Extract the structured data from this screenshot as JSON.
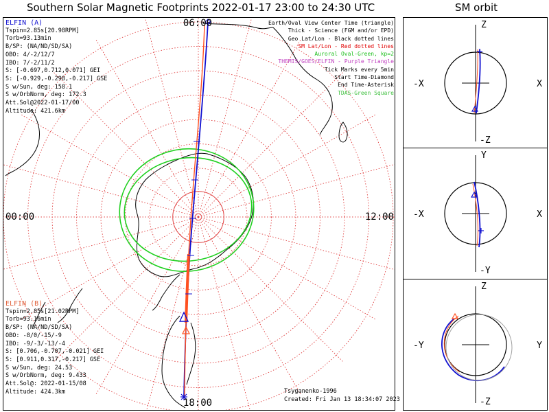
{
  "title": "Southern Solar Magnetic Footprints 2022-01-17 23:00 to 24:30 UTC",
  "orbit_panel_title": "SM orbit",
  "clock_labels": {
    "top": "06:00",
    "left": "00:00",
    "right": "12:00",
    "bottom": "18:00"
  },
  "probe_a": {
    "name": "ELFIN (A)",
    "color": "#1010d0",
    "lines": [
      "Tspin=2.85s[20.98RPM]",
      "Torb=93.13min",
      "B/SP: (NA/ND/SD/SA)",
      "OBO: 4/-2/12/7",
      "IBO: 7/-2/11/2",
      "S: [-0.697,0.712,0.071] GEI",
      "S: [-0.929,-0.298,-0.217] GSE",
      "S w/Sun, deg: 158.1",
      "S w/OrbNorm, deg: 172.3",
      "Att.Sol@2022-01-17/00",
      "Altitude: 421.6km"
    ]
  },
  "probe_b": {
    "name": "ELFIN (B)",
    "color": "#e0623c",
    "lines": [
      "Tspin=2.85s[21.02RPM]",
      "Torb=93.16min",
      "B/SP: (NA/ND/SD/SA)",
      "OBO: -8/0/-15/-9",
      "IBO: -9/-3/-13/-4",
      "S: [0.706,-0.707,-0.021] GEI",
      "S: [0.911,0.317,-0.217] GSE",
      "S w/Sun, deg: 24.53",
      "S w/OrbNorm, deg: 9.433",
      "Att.Sol@: 2022-01-15/08",
      "Altitude: 424.3km"
    ]
  },
  "legend": [
    {
      "text": "Earth/Oval View Center Time (triangle)",
      "color": "#000000"
    },
    {
      "text": "Thick - Science (FGM and/or EPD)",
      "color": "#000000"
    },
    {
      "text": "Geo Lat/Lon - Black dotted lines",
      "color": "#000000"
    },
    {
      "text": "SM Lat/Lon - Red dotted lines",
      "color": "#e00000"
    },
    {
      "text": "Auroral Oval-Green, kp=2",
      "color": "#20c020"
    },
    {
      "text": "THEMIS/GOES/ELFIN - Purple Triangle",
      "color": "#c040c0"
    },
    {
      "text": "Tick Marks every 5min",
      "color": "#000000"
    },
    {
      "text": "Start Time-Diamond",
      "color": "#000000"
    },
    {
      "text": "End Time-Asterisk",
      "color": "#000000"
    },
    {
      "text": "TDAS-Green Square",
      "color": "#40c040"
    }
  ],
  "model_label": "Tsyganenko-1996",
  "created": "Created: Fri Jan 13 18:34:07 2023",
  "orbit_panels": [
    {
      "top": "Z",
      "bottom": "-Z",
      "left": "-X",
      "right": "X"
    },
    {
      "top": "Y",
      "bottom": "-Y",
      "left": "-X",
      "right": "X"
    },
    {
      "top": "Z",
      "bottom": "-Z",
      "left": "-Y",
      "right": "Y"
    }
  ],
  "colors": {
    "sm_grid": "#e04040",
    "oval": "#20d020",
    "land": "#000000",
    "trace_a": "#1010d0",
    "trace_b": "#ff5020"
  },
  "chart_data": {
    "type": "polar footprint map",
    "projection": "Southern hemisphere polar view, magnetic local time around the rim",
    "mlt_labels": [
      "06:00",
      "00:00",
      "12:00",
      "18:00"
    ],
    "series": [
      {
        "name": "ELFIN (A)",
        "footprint_mlt_range": [
          "18:00",
          "06:00"
        ]
      },
      {
        "name": "ELFIN (B)",
        "footprint_mlt_range": [
          "18:00",
          "~00:00"
        ]
      }
    ],
    "auroral_oval_kp": 2,
    "tick_interval_min": 5
  }
}
